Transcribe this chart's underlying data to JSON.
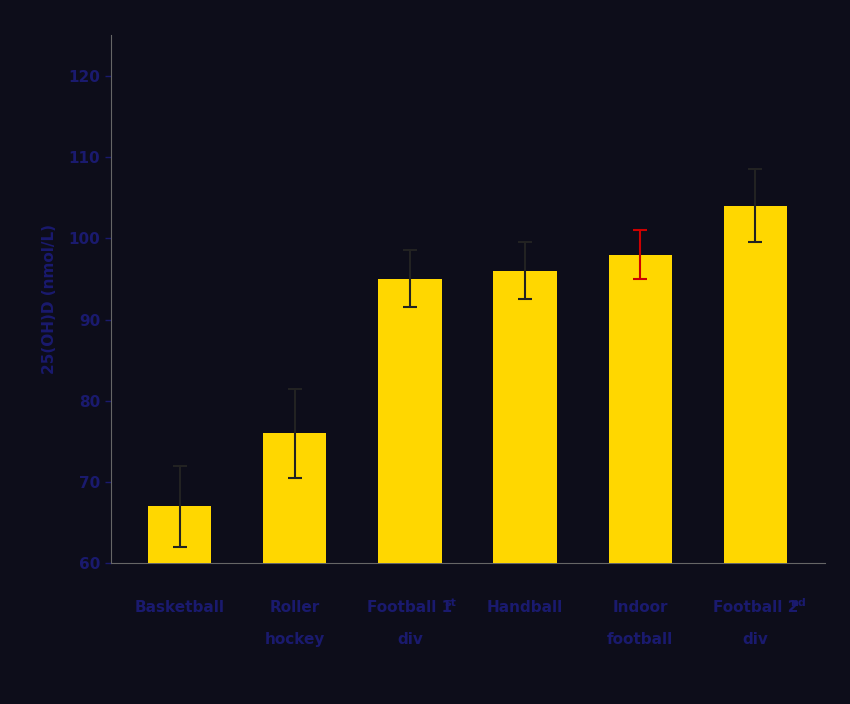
{
  "values": [
    67.0,
    76.0,
    95.0,
    96.0,
    98.0,
    104.0
  ],
  "errors": [
    5.0,
    5.5,
    3.5,
    3.5,
    3.0,
    4.5
  ],
  "bar_color": "#FFD700",
  "error_colors": [
    "#222222",
    "#222222",
    "#222222",
    "#222222",
    "#CC0000",
    "#222222"
  ],
  "ylabel": "25(OH)D (nmol/L)",
  "ylim": [
    60,
    125
  ],
  "yticks": [
    60,
    70,
    80,
    90,
    100,
    110,
    120
  ],
  "background_color": "#0D0D1A",
  "text_color": "#1A1A6E",
  "bar_width": 0.55,
  "label_fontsize": 11,
  "tick_fontsize": 11
}
